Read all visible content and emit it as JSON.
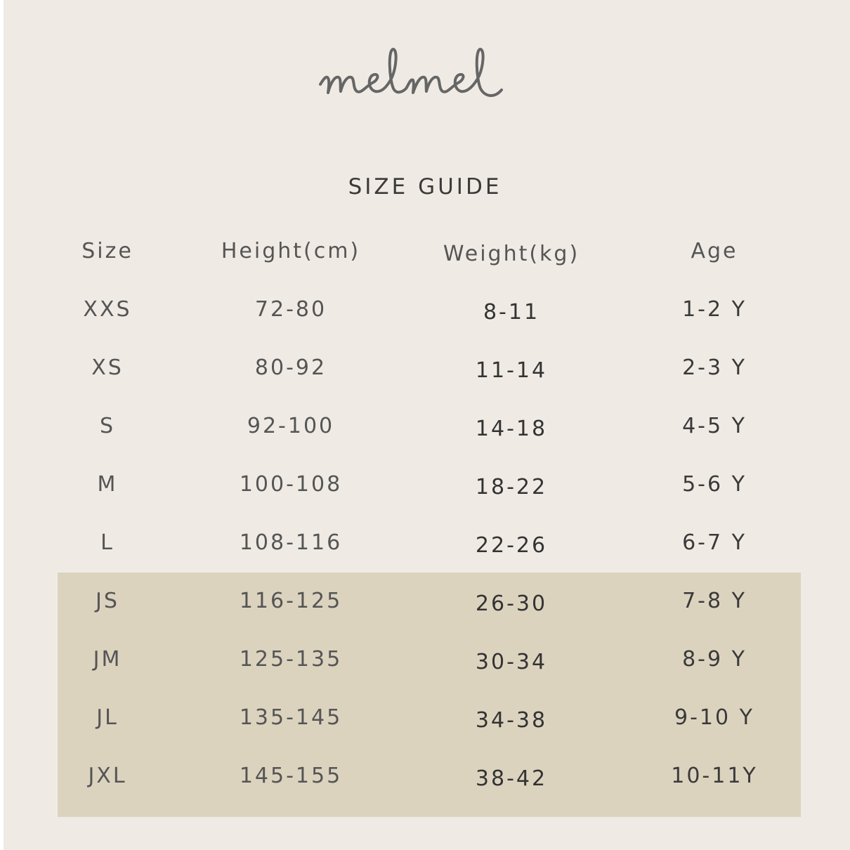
{
  "brand": {
    "logo_text": "melmel"
  },
  "title": "SIZE GUIDE",
  "colors": {
    "background": "#efebe4",
    "junior_highlight": "#dcd3bf",
    "text": "#555555"
  },
  "table": {
    "headers": [
      "Size",
      "Height(cm)",
      "Weight(kg)",
      "Age"
    ],
    "rows": [
      [
        "XXS",
        "72-80",
        "8-11",
        "1-2 Y"
      ],
      [
        "XS",
        "80-92",
        "11-14",
        "2-3 Y"
      ],
      [
        "S",
        "92-100",
        "14-18",
        "4-5 Y"
      ],
      [
        "M",
        "100-108",
        "18-22",
        "5-6 Y"
      ],
      [
        "L",
        "108-116",
        "22-26",
        "6-7 Y"
      ],
      [
        "JS",
        "116-125",
        "26-30",
        "7-8 Y"
      ],
      [
        "JM",
        "125-135",
        "30-34",
        "8-9 Y"
      ],
      [
        "JL",
        "135-145",
        "34-38",
        "9-10 Y"
      ],
      [
        "JXL",
        "145-155",
        "38-42",
        "10-11Y"
      ]
    ]
  }
}
